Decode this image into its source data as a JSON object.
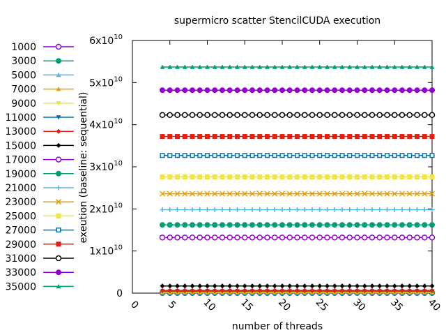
{
  "chart_data": {
    "type": "line",
    "title": "supermicro scatter StencilCUDA execution",
    "xlabel": "number of threads",
    "ylabel": "exeution (baseline: sequential)",
    "xlim": [
      0,
      40
    ],
    "ylim": [
      0,
      60000000000
    ],
    "xticks": [
      "0",
      "5",
      "10",
      "15",
      "20",
      "25",
      "30",
      "35",
      "40"
    ],
    "yticks": [
      {
        "mant": "0",
        "exp": ""
      },
      {
        "mant": "1x10",
        "exp": "10"
      },
      {
        "mant": "2x10",
        "exp": "10"
      },
      {
        "mant": "3x10",
        "exp": "10"
      },
      {
        "mant": "4x10",
        "exp": "10"
      },
      {
        "mant": "5x10",
        "exp": "10"
      },
      {
        "mant": "6x10",
        "exp": "10"
      }
    ],
    "grid": false,
    "legend_position": "left",
    "x": [
      4,
      5,
      6,
      7,
      8,
      9,
      10,
      11,
      12,
      13,
      14,
      15,
      16,
      17,
      18,
      19,
      20,
      21,
      22,
      23,
      24,
      25,
      26,
      27,
      28,
      29,
      30,
      31,
      32,
      33,
      34,
      35,
      36,
      37,
      38,
      39,
      40
    ],
    "series": [
      {
        "name": "1000",
        "value": 50000000,
        "color": "#9400d3",
        "marker": "circle-open"
      },
      {
        "name": "3000",
        "value": 100000000,
        "color": "#009e73",
        "marker": "circle"
      },
      {
        "name": "5000",
        "value": 150000000,
        "color": "#56b4e9",
        "marker": "triangle"
      },
      {
        "name": "7000",
        "value": 250000000,
        "color": "#e69f00",
        "marker": "triangle"
      },
      {
        "name": "9000",
        "value": 350000000,
        "color": "#f0e442",
        "marker": "triangle-down"
      },
      {
        "name": "11000",
        "value": 450000000,
        "color": "#0072b2",
        "marker": "triangle-down"
      },
      {
        "name": "13000",
        "value": 650000000,
        "color": "#e51e10",
        "marker": "diamond"
      },
      {
        "name": "15000",
        "value": 1700000000,
        "color": "#000000",
        "marker": "diamond"
      },
      {
        "name": "17000",
        "value": 13200000000,
        "color": "#9400d3",
        "marker": "circle-open"
      },
      {
        "name": "19000",
        "value": 16200000000,
        "color": "#009e73",
        "marker": "circle"
      },
      {
        "name": "21000",
        "value": 19800000000,
        "color": "#56b4e9",
        "marker": "plus"
      },
      {
        "name": "23000",
        "value": 23600000000,
        "color": "#e69f00",
        "marker": "cross"
      },
      {
        "name": "25000",
        "value": 27600000000,
        "color": "#f0e442",
        "marker": "square"
      },
      {
        "name": "27000",
        "value": 32700000000,
        "color": "#0072b2",
        "marker": "square-open"
      },
      {
        "name": "29000",
        "value": 37200000000,
        "color": "#e51e10",
        "marker": "square"
      },
      {
        "name": "31000",
        "value": 42300000000,
        "color": "#000000",
        "marker": "circle-open"
      },
      {
        "name": "33000",
        "value": 48200000000,
        "color": "#9400d3",
        "marker": "circle"
      },
      {
        "name": "35000",
        "value": 53700000000,
        "color": "#009e73",
        "marker": "triangle"
      }
    ]
  }
}
